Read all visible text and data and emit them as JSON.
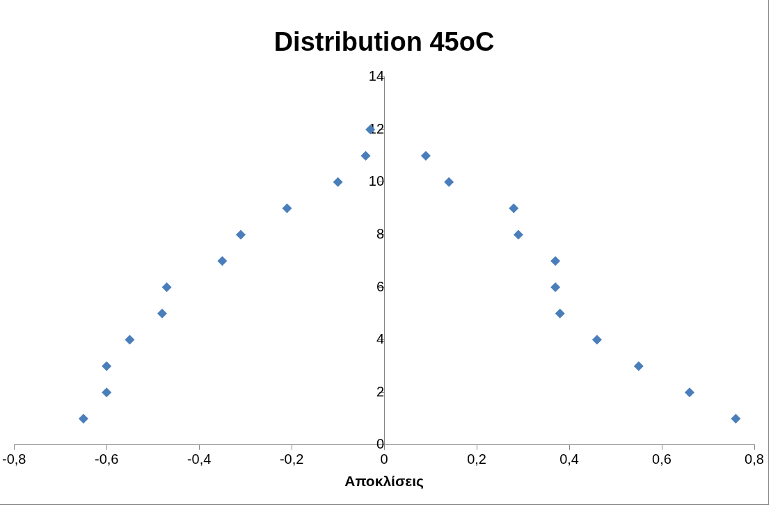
{
  "chart_data": {
    "type": "scatter",
    "title": "Distribution 45oC",
    "xlabel": "Αποκλίσεις",
    "x": [
      -0.65,
      -0.6,
      -0.6,
      -0.55,
      -0.48,
      -0.47,
      -0.35,
      -0.31,
      -0.21,
      -0.1,
      -0.04,
      -0.03,
      0.09,
      0.14,
      0.28,
      0.29,
      0.37,
      0.37,
      0.38,
      0.46,
      0.55,
      0.66,
      0.76
    ],
    "values": [
      1,
      2,
      3,
      4,
      5,
      6,
      7,
      8,
      9,
      10,
      11,
      12,
      11,
      10,
      9,
      8,
      7,
      6,
      5,
      4,
      3,
      2,
      1
    ],
    "color": "#4a7ebb",
    "marker": "diamond",
    "xlim": [
      -0.8,
      0.8
    ],
    "xticks": [
      {
        "value": -0.8,
        "label": "-0,8"
      },
      {
        "value": -0.6,
        "label": "-0,6"
      },
      {
        "value": -0.4,
        "label": "-0,4"
      },
      {
        "value": -0.2,
        "label": "-0,2"
      },
      0,
      {
        "value": 0.2,
        "label": "0,2"
      },
      {
        "value": 0.4,
        "label": "0,4"
      },
      {
        "value": 0.6,
        "label": "0,6"
      },
      {
        "value": 0.8,
        "label": "0,8"
      }
    ],
    "ylim": [
      0,
      14
    ],
    "yticks": [
      0,
      2,
      4,
      6,
      8,
      10,
      12,
      14
    ],
    "grid": false,
    "legend": false
  }
}
